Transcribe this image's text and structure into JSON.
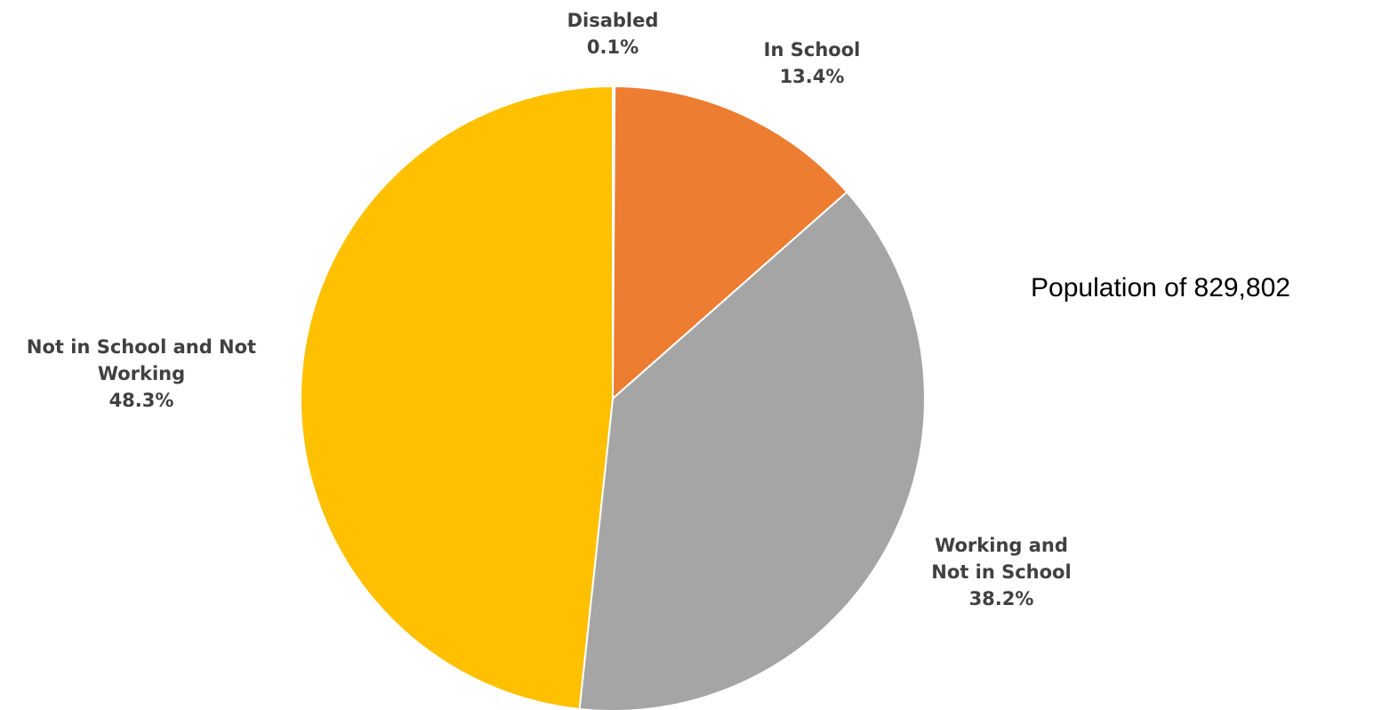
{
  "chart_data": {
    "type": "pie",
    "slices": [
      {
        "label_lines": [
          "Disabled"
        ],
        "value": 0.1,
        "value_label": "0.1%",
        "color": "#5B6B7F"
      },
      {
        "label_lines": [
          "In School"
        ],
        "value": 13.4,
        "value_label": "13.4%",
        "color": "#ED7D31"
      },
      {
        "label_lines": [
          "Working and",
          "Not in School"
        ],
        "value": 38.2,
        "value_label": "38.2%",
        "color": "#A5A5A5"
      },
      {
        "label_lines": [
          "Not in School and Not",
          "Working"
        ],
        "value": 48.3,
        "value_label": "48.3%",
        "color": "#FFC000"
      }
    ],
    "start": "12 o'clock",
    "direction": "clockwise",
    "annotation": "Population of 829,802"
  }
}
